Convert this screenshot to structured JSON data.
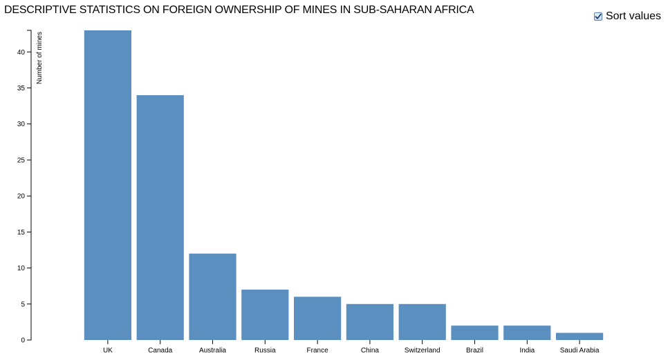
{
  "header": {
    "title": "DESCRIPTIVE STATISTICS ON FOREIGN OWNERSHIP OF MINES IN SUB-SAHARAN AFRICA"
  },
  "controls": {
    "sort_label": "Sort values",
    "sort_checked": true
  },
  "colors": {
    "bar": "#5b8fbf",
    "axis": "#000000"
  },
  "chart_data": {
    "type": "bar",
    "title": "DESCRIPTIVE STATISTICS ON FOREIGN OWNERSHIP OF MINES IN SUB-SAHARAN AFRICA",
    "xlabel": "",
    "ylabel": "Number of mines",
    "categories": [
      "UK",
      "Canada",
      "Australia",
      "Russia",
      "France",
      "China",
      "Switzerland",
      "Brazil",
      "India",
      "Saudi Arabia"
    ],
    "values": [
      43,
      34,
      12,
      7,
      6,
      5,
      5,
      2,
      2,
      1
    ],
    "ylim": [
      0,
      43
    ],
    "yticks": [
      0,
      5,
      10,
      15,
      20,
      25,
      30,
      35,
      40
    ],
    "grid": false,
    "sorted": "descending"
  }
}
